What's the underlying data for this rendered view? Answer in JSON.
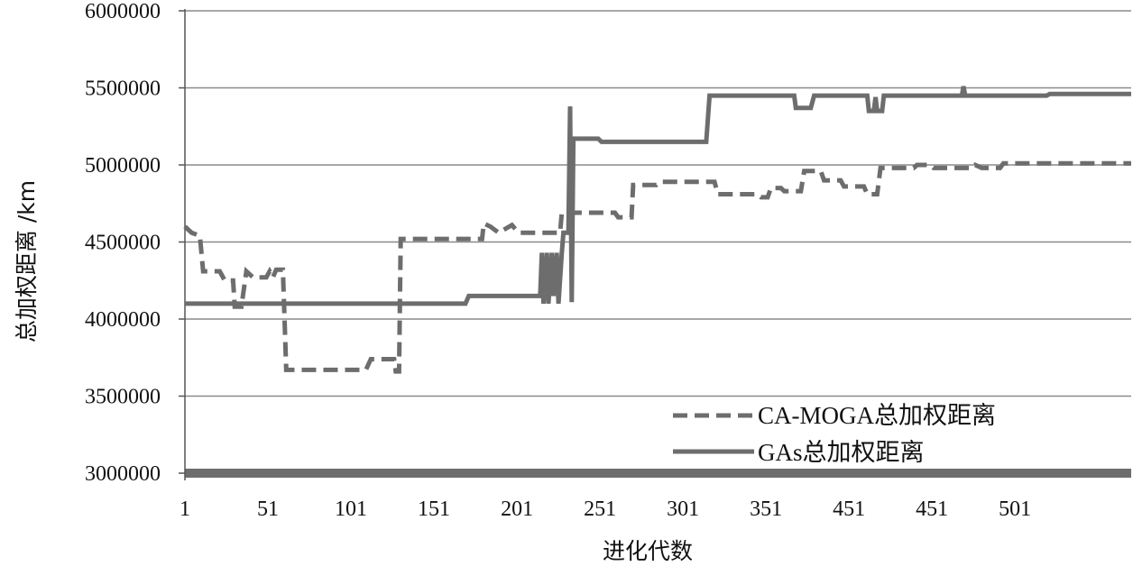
{
  "chart_data": {
    "type": "line",
    "title": "",
    "xlabel": "进化代数",
    "ylabel": "总加权距离 /km",
    "x_tick_labels": [
      "1",
      "51",
      "101",
      "151",
      "201",
      "251",
      "301",
      "351",
      "451",
      "451",
      "501"
    ],
    "y_tick_labels": [
      "3000000",
      "3500000",
      "4000000",
      "4500000",
      "5000000",
      "5500000",
      "6000000"
    ],
    "ylim": [
      3000000,
      6000000
    ],
    "xlim": [
      1,
      571
    ],
    "grid": "horizontal",
    "legend_position": "bottom-right",
    "colors": {
      "line": "#6d6d6d",
      "grid": "#8a8a8a",
      "axis": "#555555"
    },
    "series": [
      {
        "name": "CA-MOGA总加权距离",
        "style": "dashed",
        "points": [
          [
            1,
            4600000
          ],
          [
            5,
            4560000
          ],
          [
            10,
            4540000
          ],
          [
            12,
            4310000
          ],
          [
            22,
            4310000
          ],
          [
            25,
            4250000
          ],
          [
            30,
            4250000
          ],
          [
            31,
            4080000
          ],
          [
            35,
            4080000
          ],
          [
            38,
            4310000
          ],
          [
            42,
            4270000
          ],
          [
            50,
            4270000
          ],
          [
            52,
            4310000
          ],
          [
            54,
            4270000
          ],
          [
            56,
            4320000
          ],
          [
            60,
            4320000
          ],
          [
            62,
            3670000
          ],
          [
            110,
            3670000
          ],
          [
            113,
            3740000
          ],
          [
            127,
            3740000
          ],
          [
            128,
            3660000
          ],
          [
            130,
            3660000
          ],
          [
            131,
            4520000
          ],
          [
            180,
            4520000
          ],
          [
            181,
            4620000
          ],
          [
            185,
            4600000
          ],
          [
            190,
            4560000
          ],
          [
            198,
            4610000
          ],
          [
            202,
            4560000
          ],
          [
            227,
            4560000
          ],
          [
            228,
            4690000
          ],
          [
            260,
            4690000
          ],
          [
            262,
            4660000
          ],
          [
            270,
            4660000
          ],
          [
            271,
            4870000
          ],
          [
            285,
            4870000
          ],
          [
            287,
            4890000
          ],
          [
            320,
            4890000
          ],
          [
            322,
            4810000
          ],
          [
            346,
            4810000
          ],
          [
            348,
            4790000
          ],
          [
            352,
            4790000
          ],
          [
            354,
            4850000
          ],
          [
            360,
            4850000
          ],
          [
            362,
            4830000
          ],
          [
            372,
            4830000
          ],
          [
            374,
            4960000
          ],
          [
            384,
            4960000
          ],
          [
            386,
            4900000
          ],
          [
            396,
            4900000
          ],
          [
            398,
            4860000
          ],
          [
            410,
            4860000
          ],
          [
            412,
            4810000
          ],
          [
            418,
            4810000
          ],
          [
            420,
            4980000
          ],
          [
            440,
            4980000
          ],
          [
            442,
            5000000
          ],
          [
            450,
            5000000
          ],
          [
            452,
            4980000
          ],
          [
            475,
            4980000
          ],
          [
            477,
            5000000
          ],
          [
            481,
            4980000
          ],
          [
            492,
            4980000
          ],
          [
            494,
            5010000
          ],
          [
            571,
            5010000
          ]
        ]
      },
      {
        "name": "GAs总加权距离",
        "style": "solid",
        "points": [
          [
            1,
            4100000
          ],
          [
            170,
            4100000
          ],
          [
            172,
            4150000
          ],
          [
            215,
            4150000
          ],
          [
            216,
            4430000
          ],
          [
            217,
            4100000
          ],
          [
            219,
            4430000
          ],
          [
            220,
            4100000
          ],
          [
            222,
            4430000
          ],
          [
            223,
            4150000
          ],
          [
            225,
            4430000
          ],
          [
            226,
            4100000
          ],
          [
            228,
            4430000
          ],
          [
            229,
            4560000
          ],
          [
            232,
            4560000
          ],
          [
            233,
            5380000
          ],
          [
            234,
            4110000
          ],
          [
            235,
            5170000
          ],
          [
            250,
            5170000
          ],
          [
            252,
            5150000
          ],
          [
            315,
            5150000
          ],
          [
            317,
            5450000
          ],
          [
            368,
            5450000
          ],
          [
            369,
            5370000
          ],
          [
            378,
            5370000
          ],
          [
            380,
            5450000
          ],
          [
            412,
            5450000
          ],
          [
            413,
            5350000
          ],
          [
            416,
            5350000
          ],
          [
            417,
            5440000
          ],
          [
            418,
            5350000
          ],
          [
            421,
            5350000
          ],
          [
            422,
            5450000
          ],
          [
            469,
            5450000
          ],
          [
            470,
            5510000
          ],
          [
            471,
            5450000
          ],
          [
            520,
            5450000
          ],
          [
            522,
            5460000
          ],
          [
            571,
            5460000
          ]
        ]
      }
    ]
  }
}
